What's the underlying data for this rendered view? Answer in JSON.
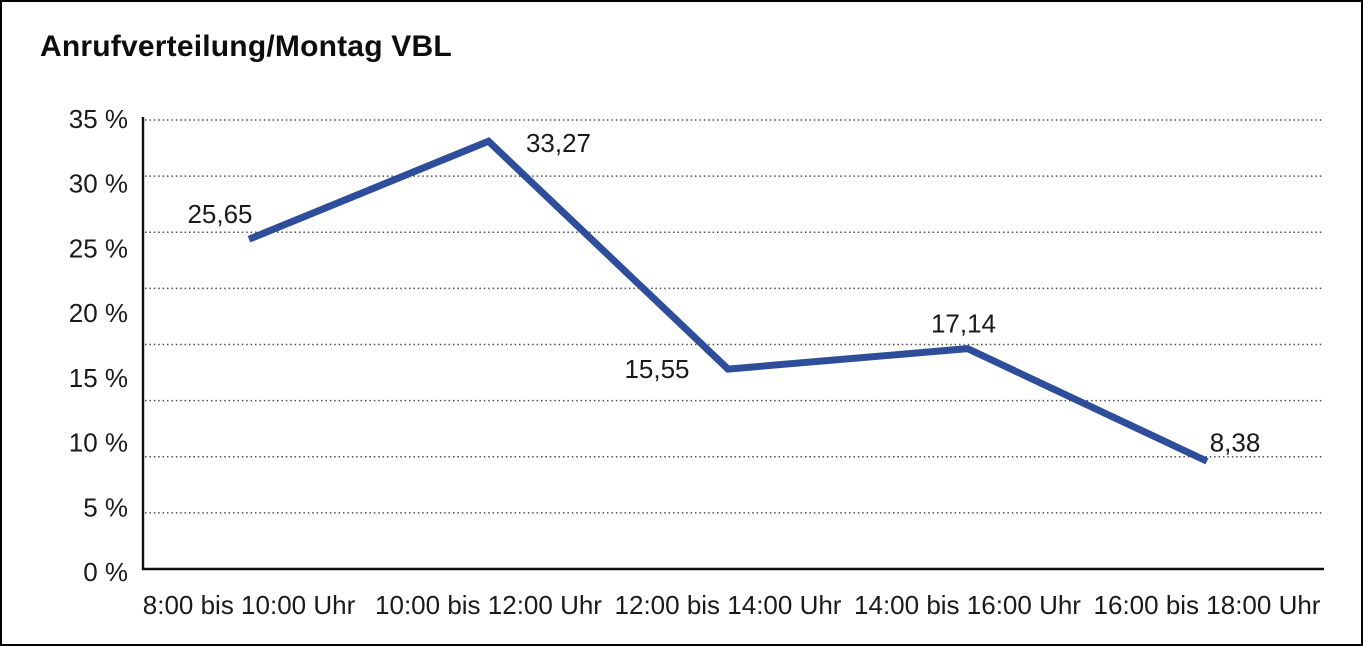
{
  "chart_data": {
    "type": "line",
    "title": "Anrufverteilung/Montag VBL",
    "categories": [
      "8:00 bis 10:00 Uhr",
      "10:00 bis 12:00 Uhr",
      "12:00 bis 14:00 Uhr",
      "14:00 bis 16:00 Uhr",
      "16:00 bis 18:00 Uhr"
    ],
    "values": [
      25.65,
      33.27,
      15.55,
      17.14,
      8.38
    ],
    "value_labels": [
      "25,65",
      "33,27",
      "15,55",
      "17,14",
      "8,38"
    ],
    "ytick_labels": [
      "35 %",
      "30 %",
      "25 %",
      "20 %",
      "15 %",
      "10 %",
      "5 %",
      "0 %"
    ],
    "ylim": [
      0,
      35
    ],
    "ytick_step": 5,
    "xlabel": "",
    "ylabel": "",
    "legend": "none",
    "grid": "dotted-horizontal",
    "line_color": "#2e4e9c",
    "grid_color": "#4d4d4d",
    "axis_color": "#111111",
    "text_color": "#1a1a1a"
  }
}
